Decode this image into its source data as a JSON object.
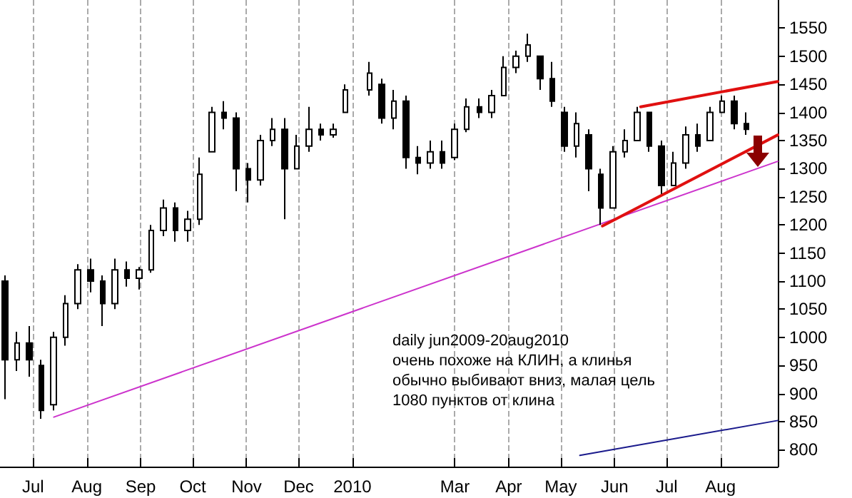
{
  "chart_data": {
    "type": "candlestick",
    "color": "#000000",
    "x": [
      "2009-06-15",
      "2009-06-22",
      "2009-06-29",
      "2009-07-06",
      "2009-07-13",
      "2009-07-20",
      "2009-07-27",
      "2009-08-03",
      "2009-08-10",
      "2009-08-17",
      "2009-08-24",
      "2009-08-31",
      "2009-09-07",
      "2009-09-14",
      "2009-09-21",
      "2009-09-28",
      "2009-10-05",
      "2009-10-12",
      "2009-10-19",
      "2009-10-26",
      "2009-11-02",
      "2009-11-09",
      "2009-11-16",
      "2009-11-23",
      "2009-11-30",
      "2009-12-07",
      "2009-12-14",
      "2009-12-21",
      "2009-12-28",
      "2010-01-11",
      "2010-01-18",
      "2010-01-25",
      "2010-02-01",
      "2010-02-08",
      "2010-02-15",
      "2010-02-22",
      "2010-03-01",
      "2010-03-08",
      "2010-03-15",
      "2010-03-22",
      "2010-03-29",
      "2010-04-05",
      "2010-04-12",
      "2010-04-19",
      "2010-04-26",
      "2010-05-03",
      "2010-05-10",
      "2010-05-17",
      "2010-05-24",
      "2010-05-31",
      "2010-06-07",
      "2010-06-14",
      "2010-06-21",
      "2010-06-28",
      "2010-07-05",
      "2010-07-12",
      "2010-07-19",
      "2010-07-26",
      "2010-08-02",
      "2010-08-09",
      "2010-08-16"
    ],
    "ohlc": [
      [
        1100,
        1110,
        890,
        960
      ],
      [
        960,
        1010,
        940,
        990
      ],
      [
        990,
        1020,
        930,
        960
      ],
      [
        950,
        960,
        855,
        870
      ],
      [
        880,
        1010,
        870,
        1000
      ],
      [
        1000,
        1075,
        985,
        1060
      ],
      [
        1060,
        1130,
        1050,
        1120
      ],
      [
        1120,
        1140,
        1080,
        1100
      ],
      [
        1100,
        1110,
        1020,
        1060
      ],
      [
        1060,
        1140,
        1050,
        1120
      ],
      [
        1120,
        1135,
        1090,
        1105
      ],
      [
        1105,
        1125,
        1085,
        1120
      ],
      [
        1120,
        1200,
        1115,
        1190
      ],
      [
        1190,
        1245,
        1180,
        1230
      ],
      [
        1230,
        1240,
        1170,
        1190
      ],
      [
        1190,
        1225,
        1170,
        1210
      ],
      [
        1210,
        1320,
        1200,
        1290
      ],
      [
        1330,
        1410,
        1330,
        1400
      ],
      [
        1400,
        1420,
        1370,
        1390
      ],
      [
        1390,
        1400,
        1260,
        1300
      ],
      [
        1300,
        1310,
        1240,
        1280
      ],
      [
        1280,
        1360,
        1270,
        1350
      ],
      [
        1350,
        1390,
        1340,
        1370
      ],
      [
        1370,
        1390,
        1210,
        1300
      ],
      [
        1300,
        1360,
        1300,
        1340
      ],
      [
        1340,
        1410,
        1330,
        1370
      ],
      [
        1370,
        1380,
        1350,
        1360
      ],
      [
        1360,
        1380,
        1355,
        1370
      ],
      [
        1400,
        1450,
        1400,
        1440
      ],
      [
        1440,
        1490,
        1430,
        1470
      ],
      [
        1450,
        1460,
        1380,
        1390
      ],
      [
        1390,
        1440,
        1370,
        1420
      ],
      [
        1420,
        1430,
        1300,
        1320
      ],
      [
        1320,
        1340,
        1290,
        1310
      ],
      [
        1310,
        1350,
        1300,
        1330
      ],
      [
        1330,
        1350,
        1300,
        1310
      ],
      [
        1320,
        1380,
        1315,
        1370
      ],
      [
        1370,
        1425,
        1365,
        1410
      ],
      [
        1410,
        1425,
        1390,
        1400
      ],
      [
        1400,
        1440,
        1390,
        1430
      ],
      [
        1430,
        1500,
        1430,
        1480
      ],
      [
        1480,
        1510,
        1470,
        1500
      ],
      [
        1500,
        1540,
        1490,
        1520
      ],
      [
        1500,
        1500,
        1440,
        1460
      ],
      [
        1460,
        1490,
        1410,
        1420
      ],
      [
        1400,
        1410,
        1330,
        1340
      ],
      [
        1340,
        1400,
        1320,
        1380
      ],
      [
        1360,
        1370,
        1260,
        1300
      ],
      [
        1290,
        1300,
        1200,
        1230
      ],
      [
        1230,
        1340,
        1230,
        1330
      ],
      [
        1330,
        1370,
        1320,
        1350
      ],
      [
        1350,
        1410,
        1350,
        1400
      ],
      [
        1400,
        1400,
        1330,
        1340
      ],
      [
        1340,
        1350,
        1255,
        1270
      ],
      [
        1270,
        1330,
        1270,
        1310
      ],
      [
        1310,
        1375,
        1300,
        1360
      ],
      [
        1360,
        1380,
        1330,
        1340
      ],
      [
        1350,
        1410,
        1350,
        1400
      ],
      [
        1400,
        1430,
        1400,
        1420
      ],
      [
        1420,
        1430,
        1370,
        1380
      ],
      [
        1380,
        1400,
        1360,
        1370
      ]
    ],
    "series": [
      {
        "type": "line",
        "color": "#cc33cc",
        "x": [
          "2009-07-13",
          "2010-09-03"
        ],
        "values": [
          858,
          1313
        ]
      },
      {
        "type": "line",
        "color": "#e01010",
        "x": [
          "2010-06-16",
          "2010-09-03"
        ],
        "values": [
          1410,
          1455
        ]
      },
      {
        "type": "line",
        "color": "#e01010",
        "x": [
          "2010-05-25",
          "2010-09-03"
        ],
        "values": [
          1198,
          1360
        ]
      },
      {
        "type": "line",
        "color": "#1a1a8c",
        "x": [
          "2010-05-12",
          "2010-09-03"
        ],
        "values": [
          790,
          852
        ]
      }
    ],
    "xlim": [
      "2009-06-12",
      "2010-09-03"
    ],
    "xticks": [
      {
        "value": "2009-07-01",
        "label": "Jul"
      },
      {
        "value": "2009-08-01",
        "label": "Aug"
      },
      {
        "value": "2009-09-01",
        "label": "Sep"
      },
      {
        "value": "2009-10-01",
        "label": "Oct"
      },
      {
        "value": "2009-11-01",
        "label": "Nov"
      },
      {
        "value": "2009-12-01",
        "label": "Dec"
      },
      {
        "value": "2010-01-01",
        "label": "2010"
      },
      {
        "value": "2010-03-01",
        "label": "Mar"
      },
      {
        "value": "2010-04-01",
        "label": "Apr"
      },
      {
        "value": "2010-05-01",
        "label": "May"
      },
      {
        "value": "2010-06-01",
        "label": "Jun"
      },
      {
        "value": "2010-07-01",
        "label": "Jul"
      },
      {
        "value": "2010-08-01",
        "label": "Aug"
      }
    ],
    "ylim": [
      770,
      1600
    ],
    "yticks": [
      800,
      850,
      900,
      950,
      1000,
      1050,
      1100,
      1150,
      1200,
      1250,
      1300,
      1350,
      1400,
      1450,
      1500,
      1550
    ],
    "grid": "x",
    "annotations": [
      "daily jun2009-20aug2010\nочень похоже на КЛИН, а клинья\nобычно выбивают вниз, малая цель\n1080 пунктов от клина"
    ]
  }
}
